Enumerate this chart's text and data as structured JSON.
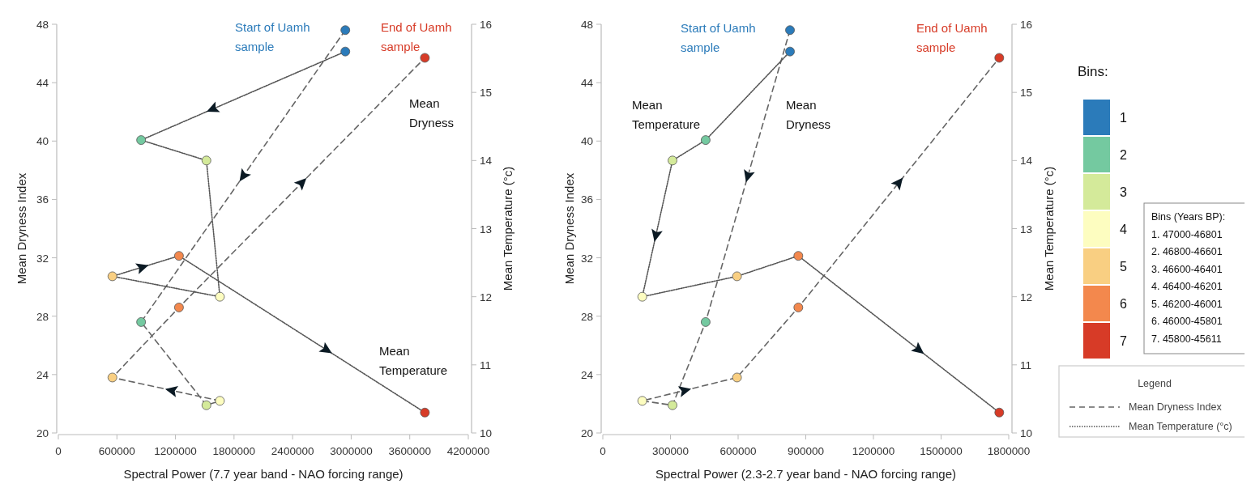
{
  "chart_data": [
    {
      "type": "line",
      "xlabel": "Spectral Power (7.7 year band - NAO forcing range)",
      "ylabel": "Mean Dryness Index",
      "y2label": "Mean Temperature (°c)",
      "xlim": [
        0,
        4200000
      ],
      "xticks": [
        0,
        600000,
        1200000,
        1800000,
        2400000,
        3000000,
        3600000,
        4200000
      ],
      "ylim": [
        20,
        48
      ],
      "yticks": [
        20,
        24,
        28,
        32,
        36,
        40,
        44,
        48
      ],
      "y2lim": [
        10,
        16
      ],
      "y2ticks": [
        10,
        11,
        12,
        13,
        14,
        15,
        16
      ],
      "grid": false,
      "legend": false,
      "marker": "circle",
      "annotations": [
        "Start of Uamh sample",
        "End of Uamh sample",
        "Mean Dryness",
        "Mean Temperature"
      ],
      "series": [
        {
          "color": "#666666",
          "line_style": "dashed",
          "x": [
            2940000,
            848000,
            1517000,
            1655000,
            554000,
            1236000,
            3755000
          ],
          "values": [
            47.6,
            27.6,
            21.9,
            22.2,
            23.8,
            28.6,
            45.7
          ],
          "colors": [
            "#2b7bba",
            "#74c9a0",
            "#d4ea9a",
            "#fdfdc0",
            "#f9cf82",
            "#f3884d",
            "#d73b27"
          ]
        },
        {
          "color": "#555555",
          "line_style": "dotted",
          "axis": "y2",
          "x": [
            2940000,
            848000,
            1517000,
            1655000,
            554000,
            1236000,
            3755000
          ],
          "values": [
            15.6,
            14.3,
            14.0,
            12.0,
            12.3,
            12.6,
            10.3
          ],
          "colors": [
            "#2b7bba",
            "#74c9a0",
            "#d4ea9a",
            "#fdfdc0",
            "#f9cf82",
            "#f3884d",
            "#d73b27"
          ]
        }
      ]
    },
    {
      "type": "line",
      "xlabel": "Spectral Power (2.3-2.7 year band - NAO forcing range)",
      "ylabel": "Mean Dryness Index",
      "y2label": "Mean Temperature (°c)",
      "xlim": [
        0,
        1800000
      ],
      "xticks": [
        0,
        300000,
        600000,
        900000,
        1200000,
        1500000,
        1800000
      ],
      "ylim": [
        20,
        48
      ],
      "yticks": [
        20,
        24,
        28,
        32,
        36,
        40,
        44,
        48
      ],
      "y2lim": [
        10,
        16
      ],
      "y2ticks": [
        10,
        11,
        12,
        13,
        14,
        15,
        16
      ],
      "grid": false,
      "legend": "right",
      "legend_title": "Legend",
      "marker": "circle",
      "clabel": "Bins:",
      "clim": [
        7.5,
        0.5
      ],
      "cticks": [
        1,
        2,
        3,
        4,
        5,
        6,
        7
      ],
      "colors": [
        "#2b7bba",
        "#74c9a0",
        "#d4ea9a",
        "#fdfdc0",
        "#f9cf82",
        "#f3884d",
        "#d73b27"
      ],
      "annotations": [
        "Start of Uamh sample",
        "End of Uamh sample",
        "Mean Dryness",
        "Mean Temperature",
        "Bins (Years BP):",
        "1. 47000-46801",
        "2. 46800-46601",
        "3. 46600-46401",
        "4. 46400-46201",
        "5. 46200-46001",
        "6. 46000-45801",
        "7. 45800-45611"
      ],
      "series": [
        {
          "name": "Mean Dryness Index",
          "color": "#666666",
          "line_style": "dashed",
          "x": [
            830000,
            456000,
            309000,
            175000,
            595000,
            867000,
            1758000
          ],
          "values": [
            47.6,
            27.6,
            21.9,
            22.2,
            23.8,
            28.6,
            45.7
          ],
          "colors": [
            "#2b7bba",
            "#74c9a0",
            "#d4ea9a",
            "#fdfdc0",
            "#f9cf82",
            "#f3884d",
            "#d73b27"
          ]
        },
        {
          "name": "Mean Temperature (°c)",
          "color": "#555555",
          "line_style": "dotted",
          "axis": "y2",
          "x": [
            830000,
            456000,
            309000,
            175000,
            595000,
            867000,
            1758000
          ],
          "values": [
            15.6,
            14.3,
            14.0,
            12.0,
            12.3,
            12.6,
            10.3
          ],
          "colors": [
            "#2b7bba",
            "#74c9a0",
            "#d4ea9a",
            "#fdfdc0",
            "#f9cf82",
            "#f3884d",
            "#d73b27"
          ]
        }
      ]
    }
  ]
}
